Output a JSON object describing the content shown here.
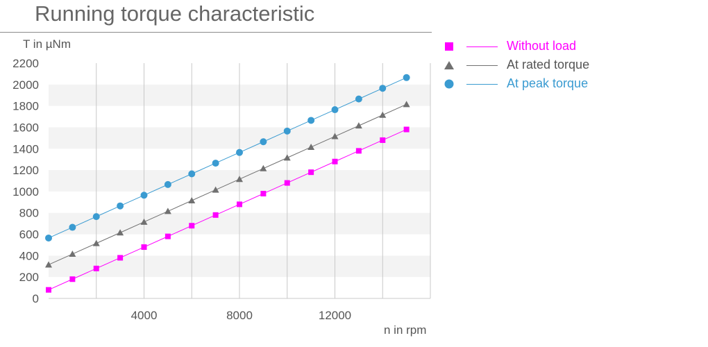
{
  "chart_data": {
    "type": "line",
    "title": "Running torque characteristic",
    "xlabel": "n in rpm",
    "ylabel": "T in µNm",
    "xlim": [
      0,
      16000
    ],
    "ylim": [
      0,
      2200
    ],
    "xticks": [
      4000,
      8000,
      12000
    ],
    "yticks": [
      0,
      200,
      400,
      600,
      800,
      1000,
      1200,
      1400,
      1600,
      1800,
      2000,
      2200
    ],
    "x": [
      0,
      1000,
      2000,
      3000,
      4000,
      5000,
      6000,
      7000,
      8000,
      9000,
      10000,
      11000,
      12000,
      13000,
      14000,
      15000
    ],
    "legend_position": "right",
    "grid": "alternating horizontal bands with vertical gridlines",
    "series": [
      {
        "name": "Without load",
        "color": "#ff00ff",
        "marker": "square",
        "values": [
          80,
          180,
          280,
          380,
          480,
          580,
          680,
          780,
          880,
          980,
          1080,
          1180,
          1280,
          1380,
          1480,
          1580
        ]
      },
      {
        "name": "At rated torque",
        "color": "#707070",
        "marker": "triangle",
        "values": [
          315,
          415,
          515,
          615,
          715,
          815,
          915,
          1015,
          1115,
          1215,
          1315,
          1415,
          1515,
          1615,
          1715,
          1815
        ]
      },
      {
        "name": "At peak torque",
        "color": "#3a9bd1",
        "marker": "circle",
        "values": [
          565,
          665,
          765,
          865,
          965,
          1065,
          1165,
          1265,
          1365,
          1465,
          1565,
          1665,
          1765,
          1865,
          1965,
          2065
        ]
      }
    ]
  }
}
